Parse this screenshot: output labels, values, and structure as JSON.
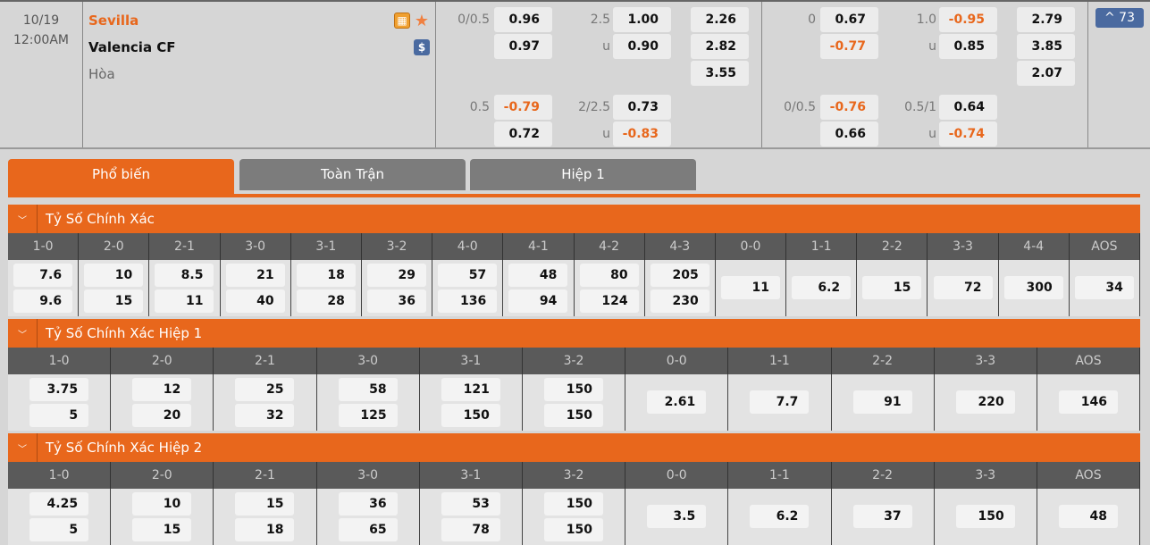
{
  "match": {
    "date": "10/19",
    "time": "12:00AM",
    "home": "Sevilla",
    "away": "Valencia CF",
    "draw": "Hòa",
    "more_count": "^ 73"
  },
  "odds": {
    "ft_hdp": [
      {
        "line": "0/0.5",
        "home": "0.96",
        "away": "0.97"
      }
    ],
    "ft_ou": {
      "line": "2.5",
      "over": "1.00",
      "u": "u",
      "under": "0.90"
    },
    "ft_1x2": [
      "2.26",
      "2.82",
      "3.55"
    ],
    "ft_hdp2": {
      "line": "0.5",
      "home": "-0.79",
      "away": "0.72"
    },
    "ft_ou2": {
      "line": "2/2.5",
      "over": "0.73",
      "u": "u",
      "under": "-0.83"
    },
    "h1_hdp": {
      "line": "0",
      "home": "0.67",
      "away": "-0.77"
    },
    "h1_ou": {
      "line": "1.0",
      "over": "-0.95",
      "u": "u",
      "under": "0.85"
    },
    "h1_1x2": [
      "2.79",
      "3.85",
      "2.07"
    ],
    "h1_hdp2": {
      "line": "0/0.5",
      "home": "-0.76",
      "away": "0.66"
    },
    "h1_ou2": {
      "line": "0.5/1",
      "over": "0.64",
      "u": "u",
      "under": "-0.74"
    }
  },
  "colors": {
    "accent": "#e8671c",
    "negative": "#e8671c",
    "badge": "#4a6aa0"
  },
  "tabs": [
    "Phổ biến",
    "Toàn Trận",
    "Hiệp 1"
  ],
  "sections": [
    {
      "title": "Tỷ Số Chính Xác",
      "cols": [
        "1-0",
        "2-0",
        "2-1",
        "3-0",
        "3-1",
        "3-2",
        "4-0",
        "4-1",
        "4-2",
        "4-3",
        "0-0",
        "1-1",
        "2-2",
        "3-3",
        "4-4",
        "AOS"
      ],
      "values": [
        [
          "7.6",
          "9.6"
        ],
        [
          "10",
          "15"
        ],
        [
          "8.5",
          "11"
        ],
        [
          "21",
          "40"
        ],
        [
          "18",
          "28"
        ],
        [
          "29",
          "36"
        ],
        [
          "57",
          "136"
        ],
        [
          "48",
          "94"
        ],
        [
          "80",
          "124"
        ],
        [
          "205",
          "230"
        ],
        [
          "11"
        ],
        [
          "6.2"
        ],
        [
          "15"
        ],
        [
          "72"
        ],
        [
          "300"
        ],
        [
          "34"
        ]
      ]
    },
    {
      "title": "Tỷ Số Chính Xác Hiệp 1",
      "cols": [
        "1-0",
        "2-0",
        "2-1",
        "3-0",
        "3-1",
        "3-2",
        "0-0",
        "1-1",
        "2-2",
        "3-3",
        "AOS"
      ],
      "values": [
        [
          "3.75",
          "5"
        ],
        [
          "12",
          "20"
        ],
        [
          "25",
          "32"
        ],
        [
          "58",
          "125"
        ],
        [
          "121",
          "150"
        ],
        [
          "150",
          "150"
        ],
        [
          "2.61"
        ],
        [
          "7.7"
        ],
        [
          "91"
        ],
        [
          "220"
        ],
        [
          "146"
        ]
      ]
    },
    {
      "title": "Tỷ Số Chính Xác Hiệp 2",
      "cols": [
        "1-0",
        "2-0",
        "2-1",
        "3-0",
        "3-1",
        "3-2",
        "0-0",
        "1-1",
        "2-2",
        "3-3",
        "AOS"
      ],
      "values": [
        [
          "4.25",
          "5"
        ],
        [
          "10",
          "15"
        ],
        [
          "15",
          "18"
        ],
        [
          "36",
          "65"
        ],
        [
          "53",
          "78"
        ],
        [
          "150",
          "150"
        ],
        [
          "3.5"
        ],
        [
          "6.2"
        ],
        [
          "37"
        ],
        [
          "150"
        ],
        [
          "48"
        ]
      ]
    }
  ]
}
